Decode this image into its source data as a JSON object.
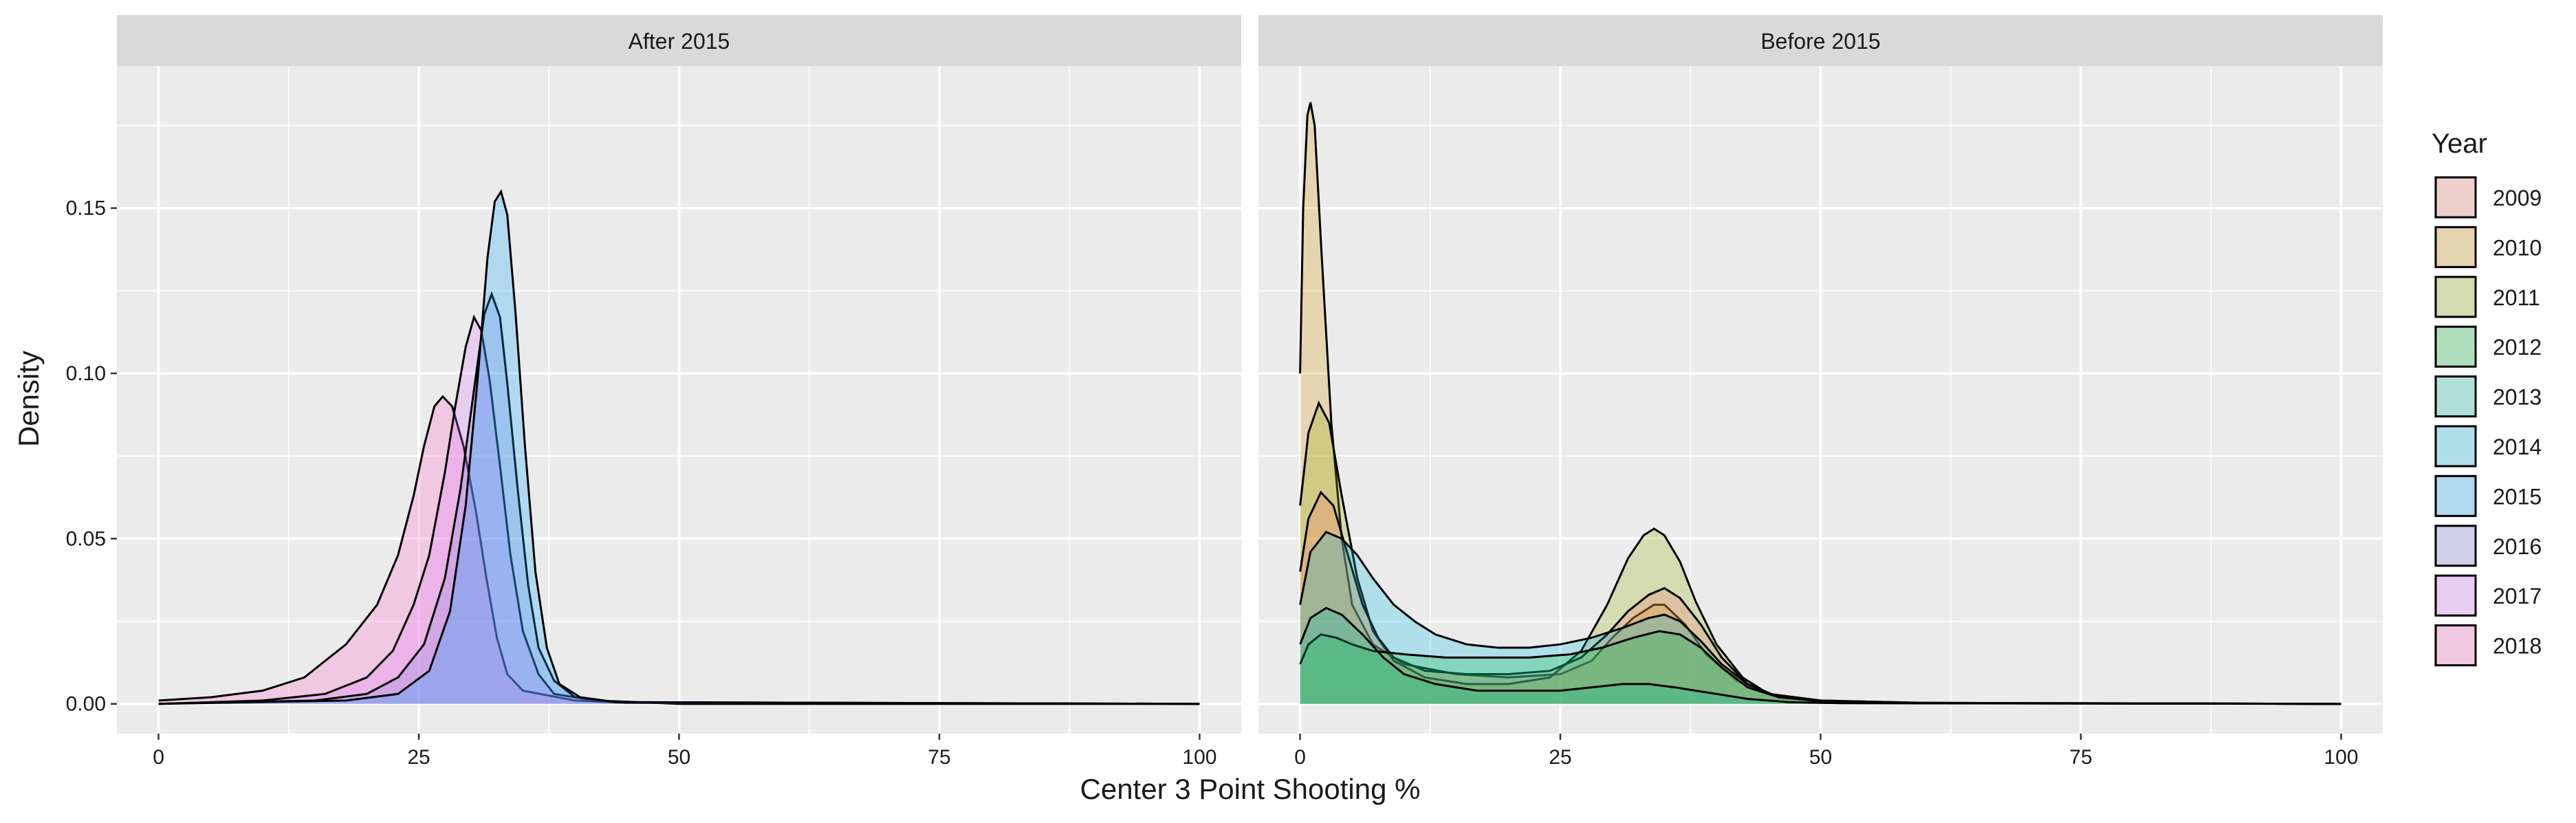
{
  "chart_data": {
    "type": "area",
    "xlabel": "Center 3 Point Shooting %",
    "ylabel": "Density",
    "xlim": [
      -4,
      104
    ],
    "ylim": [
      -0.009,
      0.193
    ],
    "x_ticks": [
      0,
      25,
      50,
      75,
      100
    ],
    "y_ticks": [
      0.0,
      0.05,
      0.1,
      0.15
    ],
    "y_tick_labels": [
      "0.00",
      "0.05",
      "0.10",
      "0.15"
    ],
    "grid": true,
    "legend": {
      "title": "Year",
      "position": "right",
      "entries": [
        {
          "label": "2009",
          "color": "#F8766D"
        },
        {
          "label": "2010",
          "color": "#D39200"
        },
        {
          "label": "2011",
          "color": "#93AA00"
        },
        {
          "label": "2012",
          "color": "#00BA38"
        },
        {
          "label": "2013",
          "color": "#00C19F"
        },
        {
          "label": "2014",
          "color": "#00B9E3"
        },
        {
          "label": "2015",
          "color": "#00A5FF"
        },
        {
          "label": "2016",
          "color": "#7F7FE0"
        },
        {
          "label": "2017",
          "color": "#DB72FB"
        },
        {
          "label": "2018",
          "color": "#FF61C3"
        }
      ]
    },
    "panels": [
      {
        "title": "After 2015",
        "series": [
          {
            "name": "2018",
            "color": "#FF61C3",
            "points": [
              [
                0,
                0.001
              ],
              [
                5,
                0.002
              ],
              [
                10,
                0.004
              ],
              [
                14,
                0.008
              ],
              [
                18,
                0.018
              ],
              [
                21,
                0.03
              ],
              [
                23,
                0.045
              ],
              [
                24.5,
                0.063
              ],
              [
                25.5,
                0.078
              ],
              [
                26.5,
                0.09
              ],
              [
                27.3,
                0.093
              ],
              [
                28.2,
                0.09
              ],
              [
                29.3,
                0.078
              ],
              [
                30.5,
                0.058
              ],
              [
                31.5,
                0.038
              ],
              [
                32.5,
                0.02
              ],
              [
                33.5,
                0.009
              ],
              [
                35,
                0.004
              ],
              [
                40,
                0.001
              ],
              [
                45,
                0.0003
              ],
              [
                100,
                0
              ]
            ]
          },
          {
            "name": "2017",
            "color": "#DB72FB",
            "points": [
              [
                0,
                0
              ],
              [
                10,
                0.001
              ],
              [
                16,
                0.003
              ],
              [
                20,
                0.008
              ],
              [
                22.5,
                0.016
              ],
              [
                24.5,
                0.03
              ],
              [
                26,
                0.045
              ],
              [
                27.5,
                0.07
              ],
              [
                28.5,
                0.09
              ],
              [
                29.5,
                0.108
              ],
              [
                30.3,
                0.117
              ],
              [
                31,
                0.113
              ],
              [
                31.8,
                0.098
              ],
              [
                32.8,
                0.072
              ],
              [
                33.8,
                0.045
              ],
              [
                35,
                0.022
              ],
              [
                36.5,
                0.009
              ],
              [
                38,
                0.003
              ],
              [
                42,
                0.001
              ],
              [
                50,
                0
              ],
              [
                100,
                0
              ]
            ]
          },
          {
            "name": "2016",
            "color": "#7F7FE0",
            "points": [
              [
                0,
                0
              ],
              [
                15,
                0.001
              ],
              [
                20,
                0.003
              ],
              [
                23,
                0.008
              ],
              [
                25.5,
                0.018
              ],
              [
                27.5,
                0.038
              ],
              [
                29,
                0.065
              ],
              [
                30.3,
                0.095
              ],
              [
                31.3,
                0.118
              ],
              [
                32,
                0.124
              ],
              [
                32.8,
                0.117
              ],
              [
                33.5,
                0.097
              ],
              [
                34.5,
                0.065
              ],
              [
                35.5,
                0.036
              ],
              [
                36.5,
                0.017
              ],
              [
                38,
                0.007
              ],
              [
                40,
                0.002
              ],
              [
                44,
                0.0005
              ],
              [
                100,
                0
              ]
            ]
          },
          {
            "name": "2015",
            "color": "#00A5FF",
            "points": [
              [
                0,
                0
              ],
              [
                18,
                0.001
              ],
              [
                23,
                0.003
              ],
              [
                26,
                0.01
              ],
              [
                28,
                0.028
              ],
              [
                29.5,
                0.06
              ],
              [
                30.7,
                0.1
              ],
              [
                31.6,
                0.135
              ],
              [
                32.3,
                0.152
              ],
              [
                32.9,
                0.155
              ],
              [
                33.5,
                0.148
              ],
              [
                34.3,
                0.118
              ],
              [
                35.2,
                0.078
              ],
              [
                36.2,
                0.04
              ],
              [
                37.3,
                0.017
              ],
              [
                38.5,
                0.006
              ],
              [
                40.5,
                0.002
              ],
              [
                44,
                0.0005
              ],
              [
                100,
                0
              ]
            ]
          }
        ]
      },
      {
        "title": "Before 2015",
        "series": [
          {
            "name": "2010",
            "color": "#D39200",
            "points": [
              [
                0,
                0.1
              ],
              [
                0.3,
                0.15
              ],
              [
                0.7,
                0.178
              ],
              [
                1,
                0.182
              ],
              [
                1.4,
                0.175
              ],
              [
                2,
                0.14
              ],
              [
                3,
                0.085
              ],
              [
                4,
                0.05
              ],
              [
                5,
                0.03
              ],
              [
                7,
                0.018
              ],
              [
                10,
                0.012
              ],
              [
                15,
                0.009
              ],
              [
                20,
                0.008
              ],
              [
                25,
                0.009
              ],
              [
                28,
                0.013
              ],
              [
                30,
                0.02
              ],
              [
                32,
                0.026
              ],
              [
                34,
                0.03
              ],
              [
                35,
                0.03
              ],
              [
                37,
                0.024
              ],
              [
                39,
                0.015
              ],
              [
                42,
                0.007
              ],
              [
                45,
                0.003
              ],
              [
                50,
                0.001
              ],
              [
                60,
                0.0003
              ],
              [
                100,
                0
              ]
            ]
          },
          {
            "name": "2011",
            "color": "#93AA00",
            "points": [
              [
                0,
                0.06
              ],
              [
                0.8,
                0.082
              ],
              [
                1.8,
                0.091
              ],
              [
                2.8,
                0.085
              ],
              [
                4,
                0.063
              ],
              [
                5.5,
                0.038
              ],
              [
                7,
                0.022
              ],
              [
                9,
                0.013
              ],
              [
                12,
                0.008
              ],
              [
                16,
                0.006
              ],
              [
                20,
                0.006
              ],
              [
                24,
                0.008
              ],
              [
                27,
                0.016
              ],
              [
                29.5,
                0.03
              ],
              [
                31.5,
                0.044
              ],
              [
                33,
                0.051
              ],
              [
                34,
                0.053
              ],
              [
                35,
                0.051
              ],
              [
                36.5,
                0.043
              ],
              [
                38,
                0.031
              ],
              [
                40,
                0.018
              ],
              [
                42.5,
                0.008
              ],
              [
                45,
                0.003
              ],
              [
                50,
                0.001
              ],
              [
                60,
                0.0003
              ],
              [
                100,
                0
              ]
            ]
          },
          {
            "name": "2009",
            "color": "#F8766D",
            "points": [
              [
                0,
                0.04
              ],
              [
                0.8,
                0.056
              ],
              [
                2,
                0.064
              ],
              [
                3.2,
                0.06
              ],
              [
                4.5,
                0.046
              ],
              [
                6,
                0.03
              ],
              [
                7.5,
                0.02
              ],
              [
                9,
                0.014
              ],
              [
                12,
                0.01
              ],
              [
                16,
                0.009
              ],
              [
                20,
                0.009
              ],
              [
                24,
                0.01
              ],
              [
                27,
                0.014
              ],
              [
                29.5,
                0.021
              ],
              [
                31.5,
                0.028
              ],
              [
                33.5,
                0.033
              ],
              [
                35,
                0.035
              ],
              [
                36.5,
                0.032
              ],
              [
                38.5,
                0.024
              ],
              [
                40.5,
                0.014
              ],
              [
                43,
                0.006
              ],
              [
                46,
                0.002
              ],
              [
                50,
                0.0008
              ],
              [
                60,
                0.0002
              ],
              [
                100,
                0
              ]
            ]
          },
          {
            "name": "2014",
            "color": "#00B9E3",
            "points": [
              [
                0,
                0.03
              ],
              [
                1,
                0.046
              ],
              [
                2.5,
                0.052
              ],
              [
                4,
                0.05
              ],
              [
                5.5,
                0.045
              ],
              [
                7,
                0.038
              ],
              [
                9,
                0.03
              ],
              [
                11,
                0.025
              ],
              [
                13,
                0.021
              ],
              [
                16,
                0.018
              ],
              [
                19,
                0.017
              ],
              [
                22,
                0.017
              ],
              [
                25,
                0.018
              ],
              [
                28,
                0.02
              ],
              [
                31,
                0.023
              ],
              [
                33.5,
                0.026
              ],
              [
                35,
                0.027
              ],
              [
                36.5,
                0.025
              ],
              [
                38.5,
                0.019
              ],
              [
                40.5,
                0.012
              ],
              [
                43,
                0.006
              ],
              [
                46,
                0.002
              ],
              [
                50,
                0.0008
              ],
              [
                60,
                0.0002
              ],
              [
                100,
                0
              ]
            ]
          },
          {
            "name": "2012",
            "color": "#00BA38",
            "points": [
              [
                0,
                0.012
              ],
              [
                0.8,
                0.018
              ],
              [
                2,
                0.021
              ],
              [
                3.5,
                0.02
              ],
              [
                5,
                0.018
              ],
              [
                7,
                0.016
              ],
              [
                10,
                0.015
              ],
              [
                14,
                0.014
              ],
              [
                18,
                0.014
              ],
              [
                22,
                0.014
              ],
              [
                26,
                0.015
              ],
              [
                29,
                0.017
              ],
              [
                32,
                0.02
              ],
              [
                34.5,
                0.022
              ],
              [
                36.5,
                0.021
              ],
              [
                38.5,
                0.017
              ],
              [
                40.5,
                0.011
              ],
              [
                43,
                0.005
              ],
              [
                46,
                0.002
              ],
              [
                50,
                0.0008
              ],
              [
                60,
                0.0002
              ],
              [
                100,
                0
              ]
            ]
          },
          {
            "name": "2013",
            "color": "#00C19F",
            "points": [
              [
                0,
                0.018
              ],
              [
                1,
                0.026
              ],
              [
                2.5,
                0.029
              ],
              [
                4,
                0.027
              ],
              [
                6,
                0.021
              ],
              [
                8,
                0.014
              ],
              [
                10,
                0.009
              ],
              [
                13,
                0.006
              ],
              [
                17,
                0.004
              ],
              [
                21,
                0.004
              ],
              [
                25,
                0.004
              ],
              [
                28,
                0.005
              ],
              [
                31,
                0.006
              ],
              [
                33.5,
                0.006
              ],
              [
                36,
                0.005
              ],
              [
                38,
                0.004
              ],
              [
                40,
                0.003
              ],
              [
                43,
                0.0015
              ],
              [
                47,
                0.0005
              ],
              [
                52,
                0.0002
              ],
              [
                100,
                0
              ]
            ]
          }
        ]
      }
    ]
  }
}
